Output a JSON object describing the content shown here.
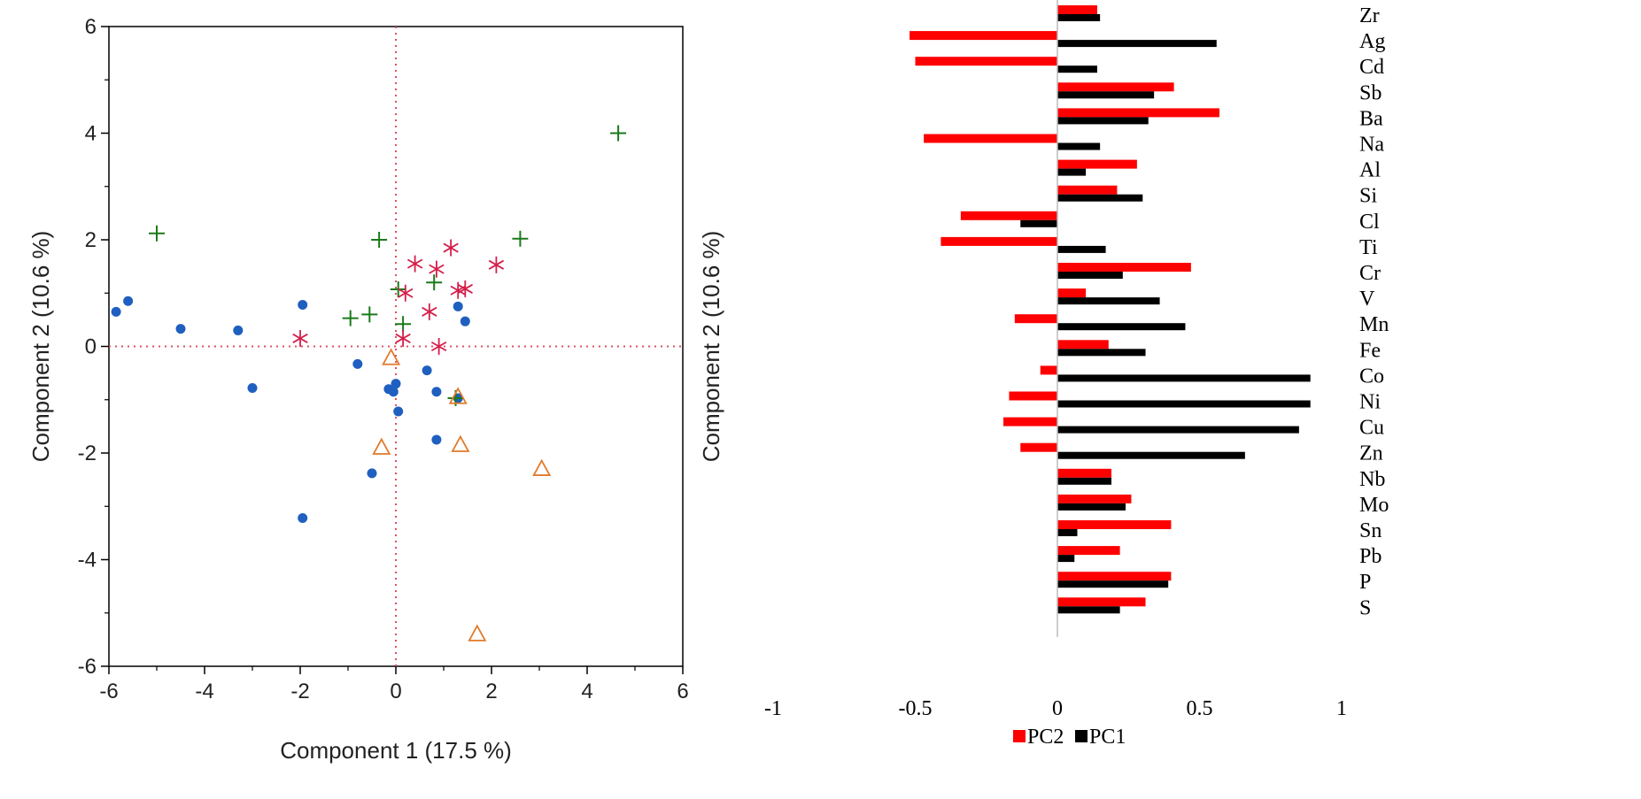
{
  "chart_data": [
    {
      "type": "scatter",
      "xlabel": "Component 1  (17.5 %)",
      "ylabel": "Component 2  (10.6 %)",
      "right_ylabel": "Component 2  (10.6 %)",
      "xlim": [
        -6,
        6
      ],
      "ylim": [
        -6,
        6
      ],
      "xticks": [
        "-6",
        "-4",
        "-2",
        "0",
        "2",
        "4",
        "6"
      ],
      "yticks": [
        "6",
        "4",
        "2",
        "0",
        "-2",
        "-4",
        "-6"
      ],
      "grid": false,
      "reference_lines": {
        "x": 0,
        "y": 0,
        "color": "#e05060",
        "style": "dotted"
      },
      "series": [
        {
          "marker": "dot",
          "color": "#1f5fbf",
          "points": [
            [
              -5.85,
              0.65
            ],
            [
              -5.6,
              0.85
            ],
            [
              -4.5,
              0.33
            ],
            [
              -3.3,
              0.3
            ],
            [
              -3.0,
              -0.78
            ],
            [
              -1.95,
              0.78
            ],
            [
              -1.95,
              -3.22
            ],
            [
              -0.8,
              -0.33
            ],
            [
              -0.5,
              -2.38
            ],
            [
              -0.15,
              -0.8
            ],
            [
              -0.05,
              -0.85
            ],
            [
              0.0,
              -0.7
            ],
            [
              0.05,
              -1.22
            ],
            [
              0.65,
              -0.45
            ],
            [
              0.85,
              -0.85
            ],
            [
              0.85,
              -1.75
            ],
            [
              1.3,
              0.75
            ],
            [
              1.45,
              0.47
            ],
            [
              1.3,
              -0.97
            ]
          ]
        },
        {
          "marker": "plus",
          "color": "#1a7a1a",
          "points": [
            [
              -5.0,
              2.12
            ],
            [
              -0.35,
              2.0
            ],
            [
              -0.95,
              0.53
            ],
            [
              -0.55,
              0.6
            ],
            [
              0.05,
              1.07
            ],
            [
              0.15,
              0.42
            ],
            [
              0.8,
              1.2
            ],
            [
              2.6,
              2.02
            ],
            [
              4.65,
              4.0
            ],
            [
              1.25,
              -0.97
            ]
          ]
        },
        {
          "marker": "asterisk",
          "color": "#d41e4a",
          "points": [
            [
              -2.0,
              0.15
            ],
            [
              0.2,
              1.0
            ],
            [
              0.4,
              1.55
            ],
            [
              0.85,
              1.45
            ],
            [
              1.15,
              1.85
            ],
            [
              1.3,
              1.05
            ],
            [
              1.45,
              1.08
            ],
            [
              2.1,
              1.53
            ],
            [
              0.7,
              0.65
            ],
            [
              0.15,
              0.15
            ],
            [
              0.9,
              0.0
            ]
          ]
        },
        {
          "marker": "triangle",
          "color": "#e07a2a",
          "points": [
            [
              -0.1,
              -0.22
            ],
            [
              -0.3,
              -1.9
            ],
            [
              1.35,
              -1.85
            ],
            [
              3.05,
              -2.3
            ],
            [
              1.7,
              -5.4
            ],
            [
              1.3,
              -0.95
            ]
          ]
        }
      ]
    },
    {
      "type": "bar",
      "orientation": "horizontal",
      "categories": [
        "Zr",
        "Ag",
        "Cd",
        "Sb",
        "Ba",
        "Na",
        "Al",
        "Si",
        "Cl",
        "Ti",
        "Cr",
        "V",
        "Mn",
        "Fe",
        "Co",
        "Ni",
        "Cu",
        "Zn",
        "Nb",
        "Mo",
        "Sn",
        "Pb",
        "P",
        "S"
      ],
      "xlim": [
        -1,
        1
      ],
      "xticks": [
        "-1",
        "-0.5",
        "0",
        "0.5",
        "1"
      ],
      "series": [
        {
          "name": "PC2",
          "color": "#ff0000",
          "values": [
            0.14,
            -0.52,
            -0.5,
            0.41,
            0.57,
            -0.47,
            0.28,
            0.21,
            -0.34,
            -0.41,
            0.47,
            0.1,
            -0.15,
            0.18,
            -0.06,
            -0.17,
            -0.19,
            -0.13,
            0.19,
            0.26,
            0.4,
            0.22,
            0.4,
            0.31
          ]
        },
        {
          "name": "PC1",
          "color": "#000000",
          "values": [
            0.15,
            0.56,
            0.14,
            0.34,
            0.32,
            0.15,
            0.1,
            0.3,
            -0.13,
            0.17,
            0.23,
            0.36,
            0.45,
            0.31,
            0.89,
            0.89,
            0.85,
            0.66,
            0.19,
            0.24,
            0.07,
            0.06,
            0.39,
            0.22
          ]
        }
      ],
      "legend": "bottom-center"
    }
  ]
}
